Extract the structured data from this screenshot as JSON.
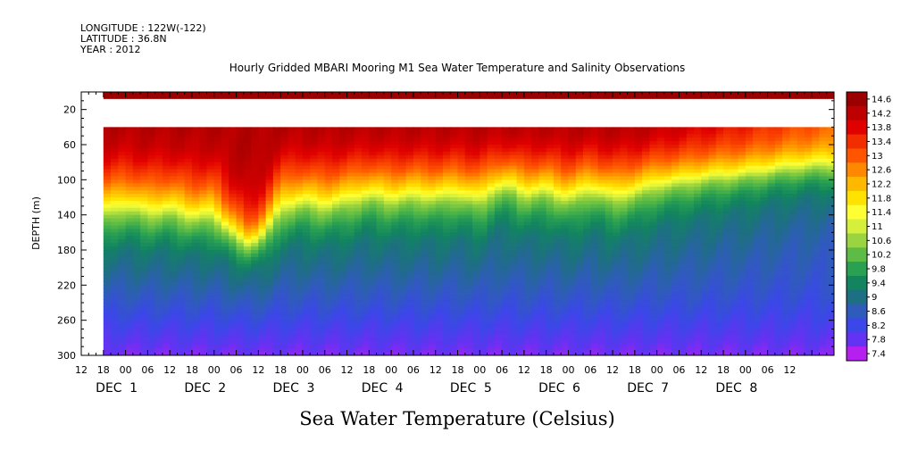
{
  "header": {
    "longitude": "LONGITUDE : 122W(-122)",
    "latitude": "LATITUDE : 36.8N",
    "year": "YEAR : 2012"
  },
  "chart_data": {
    "type": "heatmap",
    "title": "Hourly Gridded MBARI Mooring M1 Sea Water Temperature and Salinity Observations",
    "xlabel": "Sea Water Temperature (Celsius)",
    "ylabel": "DEPTH (m)",
    "x_unit": "hours since 2012-11-30 12:00",
    "xlim": [
      0,
      204
    ],
    "ylim": [
      300,
      0
    ],
    "data_start_hour": 6,
    "x_hour_ticks": [
      "12",
      "18",
      "00",
      "06",
      "12",
      "18",
      "00",
      "06",
      "12",
      "18",
      "00",
      "06",
      "12",
      "18",
      "00",
      "06",
      "12",
      "18",
      "00",
      "06",
      "12",
      "18",
      "00",
      "06",
      "12",
      "18",
      "00",
      "06",
      "12",
      "18",
      "00",
      "06",
      "12"
    ],
    "x_date_labels": [
      {
        "hour": 12,
        "month": "DEC",
        "day": "1"
      },
      {
        "hour": 36,
        "month": "DEC",
        "day": "2"
      },
      {
        "hour": 60,
        "month": "DEC",
        "day": "3"
      },
      {
        "hour": 84,
        "month": "DEC",
        "day": "4"
      },
      {
        "hour": 108,
        "month": "DEC",
        "day": "5"
      },
      {
        "hour": 132,
        "month": "DEC",
        "day": "6"
      },
      {
        "hour": 156,
        "month": "DEC",
        "day": "7"
      },
      {
        "hour": 180,
        "month": "DEC",
        "day": "8"
      }
    ],
    "y_ticks": [
      "20",
      "60",
      "100",
      "140",
      "180",
      "220",
      "260",
      "300"
    ],
    "top_band_depth": [
      0,
      8
    ],
    "gap_depth": [
      8,
      40
    ],
    "colorbar": {
      "labels": [
        "14.6",
        "14.2",
        "13.8",
        "13.4",
        "13",
        "12.6",
        "12.2",
        "11.8",
        "11.4",
        "11",
        "10.6",
        "10.2",
        "9.8",
        "9.4",
        "9",
        "8.6",
        "8.2",
        "7.8",
        "7.4"
      ],
      "colors": [
        "#9b0000",
        "#be0000",
        "#e00000",
        "#f22d00",
        "#ff5500",
        "#ff8800",
        "#ffb800",
        "#ffe200",
        "#ffff33",
        "#d4f03c",
        "#9ad440",
        "#5cbc45",
        "#2aa052",
        "#12845f",
        "#1e6e84",
        "#2f5cba",
        "#3b47e8",
        "#6432f2",
        "#b61ff0"
      ]
    },
    "profile": [
      {
        "depth": 40,
        "temp": 14.3
      },
      {
        "depth": 60,
        "temp": 14.1
      },
      {
        "depth": 80,
        "temp": 13.6
      },
      {
        "depth": 100,
        "temp": 12.9
      },
      {
        "depth": 120,
        "temp": 11.9
      },
      {
        "depth": 140,
        "temp": 10.5
      },
      {
        "depth": 160,
        "temp": 9.7
      },
      {
        "depth": 180,
        "temp": 9.2
      },
      {
        "depth": 220,
        "temp": 8.7
      },
      {
        "depth": 260,
        "temp": 8.2
      },
      {
        "depth": 300,
        "temp": 7.7
      }
    ],
    "thermocline_depth": [
      {
        "hour": 6,
        "depth": 125
      },
      {
        "hour": 12,
        "depth": 118
      },
      {
        "hour": 18,
        "depth": 125
      },
      {
        "hour": 24,
        "depth": 122
      },
      {
        "hour": 30,
        "depth": 130
      },
      {
        "hour": 36,
        "depth": 128
      },
      {
        "hour": 42,
        "depth": 158
      },
      {
        "hour": 45,
        "depth": 170
      },
      {
        "hour": 48,
        "depth": 165
      },
      {
        "hour": 54,
        "depth": 120
      },
      {
        "hour": 60,
        "depth": 113
      },
      {
        "hour": 66,
        "depth": 118
      },
      {
        "hour": 72,
        "depth": 112
      },
      {
        "hour": 78,
        "depth": 105
      },
      {
        "hour": 84,
        "depth": 110
      },
      {
        "hour": 90,
        "depth": 106
      },
      {
        "hour": 96,
        "depth": 108
      },
      {
        "hour": 102,
        "depth": 104
      },
      {
        "hour": 108,
        "depth": 112
      },
      {
        "hour": 112,
        "depth": 97
      },
      {
        "hour": 116,
        "depth": 94
      },
      {
        "hour": 120,
        "depth": 104
      },
      {
        "hour": 126,
        "depth": 100
      },
      {
        "hour": 132,
        "depth": 110
      },
      {
        "hour": 138,
        "depth": 98
      },
      {
        "hour": 144,
        "depth": 108
      },
      {
        "hour": 150,
        "depth": 102
      },
      {
        "hour": 156,
        "depth": 92
      },
      {
        "hour": 162,
        "depth": 88
      },
      {
        "hour": 168,
        "depth": 82
      },
      {
        "hour": 174,
        "depth": 78
      },
      {
        "hour": 180,
        "depth": 74
      },
      {
        "hour": 186,
        "depth": 68
      },
      {
        "hour": 192,
        "depth": 62
      },
      {
        "hour": 198,
        "depth": 58
      },
      {
        "hour": 204,
        "depth": 56
      }
    ]
  }
}
